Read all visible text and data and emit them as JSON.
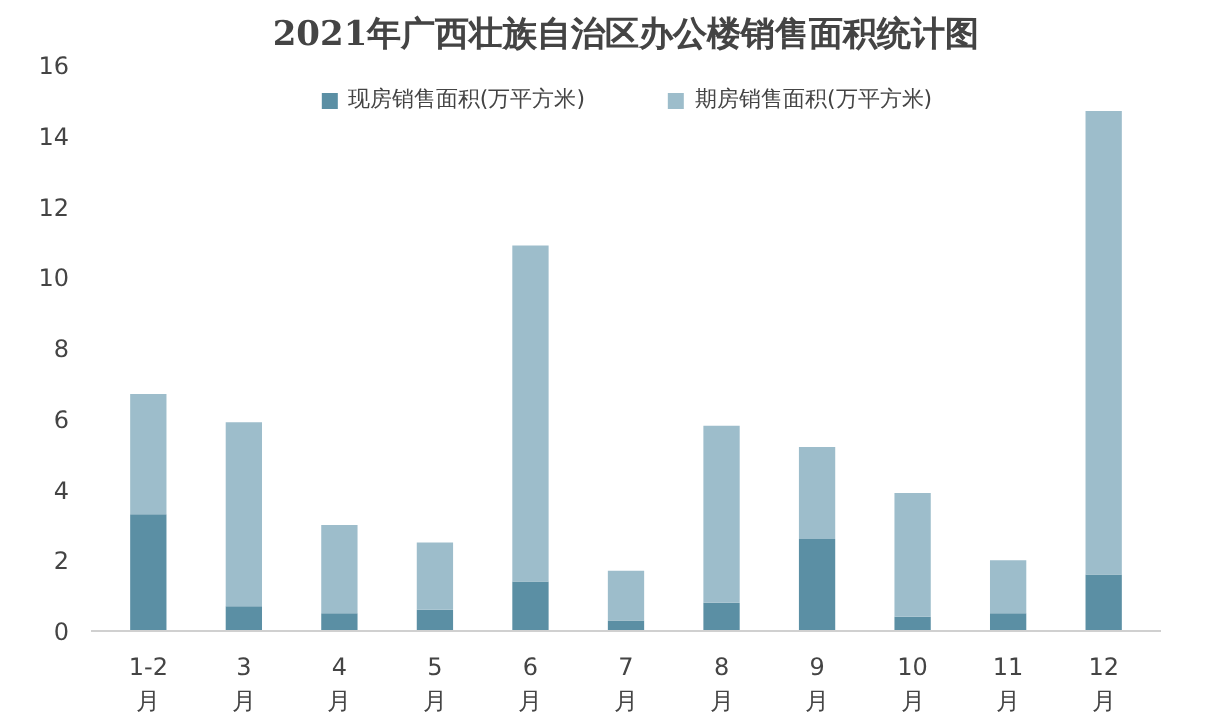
{
  "chart_data": {
    "type": "bar",
    "stacked": true,
    "title": "2021年广西壮族自治区办公楼销售面积统计图",
    "categories": [
      "1-2\n月",
      "3\n月",
      "4\n月",
      "5\n月",
      "6\n月",
      "7\n月",
      "8\n月",
      "9\n月",
      "10\n月",
      "11\n月",
      "12\n月"
    ],
    "series": [
      {
        "name": "现房销售面积(万平方米)",
        "color": "#5b8fa4",
        "values": [
          3.3,
          0.7,
          0.5,
          0.6,
          1.4,
          0.3,
          0.8,
          2.6,
          0.4,
          0.5,
          1.6
        ]
      },
      {
        "name": "期房销售面积(万平方米)",
        "color": "#9dbdcb",
        "values": [
          3.4,
          5.2,
          2.5,
          1.9,
          9.5,
          1.4,
          5.0,
          2.6,
          3.5,
          1.5,
          13.1
        ]
      }
    ],
    "ylim": [
      0,
      16
    ],
    "yticks": [
      0,
      2,
      4,
      6,
      8,
      10,
      12,
      14,
      16
    ],
    "grid": false,
    "legend": "top"
  }
}
